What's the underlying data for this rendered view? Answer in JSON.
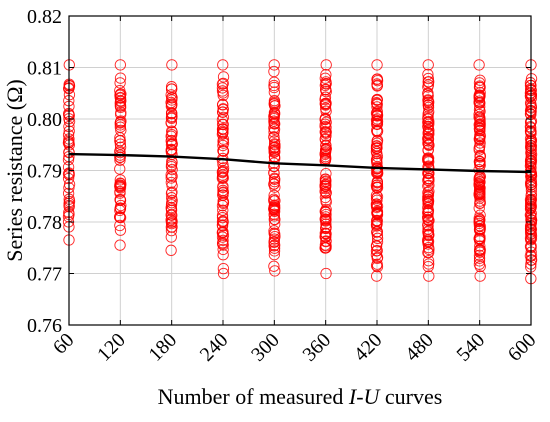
{
  "chart_data": {
    "type": "scatter",
    "title": "",
    "xlabel_parts": [
      {
        "text": "Number of measured ",
        "italic": false
      },
      {
        "text": "I",
        "italic": true
      },
      {
        "text": "-",
        "italic": false
      },
      {
        "text": "U",
        "italic": true
      },
      {
        "text": " curves",
        "italic": false
      }
    ],
    "ylabel": "Series resistance (Ω)",
    "x_ticks": [
      60,
      120,
      180,
      240,
      300,
      360,
      420,
      480,
      540,
      600
    ],
    "x_tick_labels": [
      "60",
      "120",
      "180",
      "240",
      "300",
      "360",
      "420",
      "480",
      "540",
      "600"
    ],
    "y_ticks": [
      0.76,
      0.77,
      0.78,
      0.79,
      0.8,
      0.81,
      0.82
    ],
    "y_tick_labels": [
      "0.76",
      "0.77",
      "0.78",
      "0.79",
      "0.80",
      "0.81",
      "0.82"
    ],
    "xlim": [
      60,
      600
    ],
    "ylim": [
      0.76,
      0.82
    ],
    "grid": true,
    "series": [
      {
        "kind": "scatter",
        "marker": "open-circle",
        "color": "#ff0000",
        "groups": [
          {
            "x": 60,
            "y_min": 0.7765,
            "y_max": 0.8105,
            "count": 45
          },
          {
            "x": 120,
            "y_min": 0.7755,
            "y_max": 0.8105,
            "count": 60
          },
          {
            "x": 180,
            "y_min": 0.7745,
            "y_max": 0.8105,
            "count": 65
          },
          {
            "x": 240,
            "y_min": 0.77,
            "y_max": 0.8105,
            "count": 75
          },
          {
            "x": 300,
            "y_min": 0.7705,
            "y_max": 0.8105,
            "count": 85
          },
          {
            "x": 360,
            "y_min": 0.77,
            "y_max": 0.8105,
            "count": 95
          },
          {
            "x": 420,
            "y_min": 0.7695,
            "y_max": 0.8105,
            "count": 105
          },
          {
            "x": 480,
            "y_min": 0.7695,
            "y_max": 0.8105,
            "count": 110
          },
          {
            "x": 540,
            "y_min": 0.7695,
            "y_max": 0.8105,
            "count": 115
          },
          {
            "x": 600,
            "y_min": 0.769,
            "y_max": 0.8105,
            "count": 120
          }
        ]
      },
      {
        "kind": "line",
        "color": "#000000",
        "x": [
          60,
          120,
          180,
          240,
          300,
          360,
          420,
          480,
          540,
          600
        ],
        "y": [
          0.7932,
          0.793,
          0.7927,
          0.7922,
          0.7914,
          0.791,
          0.7905,
          0.7902,
          0.7899,
          0.7897
        ]
      }
    ]
  }
}
